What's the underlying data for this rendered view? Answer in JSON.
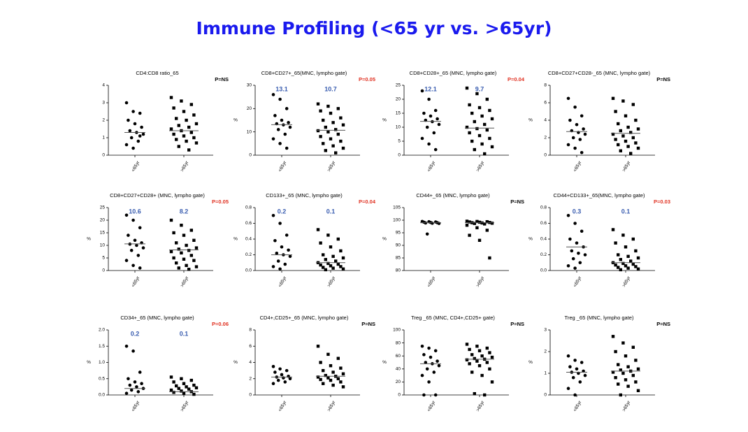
{
  "title": "Immune Profiling (<65 yr vs. >65yr)",
  "chart_data": [
    {
      "type": "dot",
      "title": "CD4:CD8 ratio_65",
      "annotation": "P=NS",
      "annotation_color": "#000000",
      "ylim": [
        0,
        4
      ],
      "yticks": [
        0,
        1,
        2,
        3,
        4
      ],
      "center": [
        1.3,
        1.4
      ],
      "center_labels": false,
      "series": [
        {
          "name": "<65yr",
          "values": [
            3.0,
            2.5,
            2.4,
            2.0,
            1.8,
            1.6,
            1.4,
            1.3,
            1.2,
            1.0,
            0.8,
            0.6,
            0.4,
            1.1
          ]
        },
        {
          "name": ">65yr",
          "values": [
            3.3,
            3.1,
            2.9,
            2.7,
            2.5,
            2.3,
            2.1,
            2.0,
            1.8,
            1.7,
            1.6,
            1.5,
            1.4,
            1.3,
            1.2,
            1.1,
            1.0,
            0.9,
            0.8,
            0.7,
            0.5,
            0.3
          ]
        }
      ]
    },
    {
      "type": "dot",
      "title": "CD8+CD27+_65(MNC, lympho gate)",
      "annotation": "P=0.05",
      "annotation_color": "#e03020",
      "ylabel": "%",
      "ylim": [
        0,
        30
      ],
      "yticks": [
        0,
        10,
        20,
        30
      ],
      "center": [
        13.1,
        10.7
      ],
      "center_labels": true,
      "series": [
        {
          "name": "<65yr",
          "values": [
            26,
            24,
            20,
            17,
            15,
            14,
            13.5,
            13,
            12,
            11,
            9,
            7,
            5,
            3
          ]
        },
        {
          "name": ">65yr",
          "values": [
            22,
            21,
            20,
            19,
            18,
            16,
            15,
            14,
            13,
            12,
            11,
            10.5,
            10,
            9,
            8,
            7,
            6,
            5,
            4,
            3,
            2,
            1
          ]
        }
      ]
    },
    {
      "type": "dot",
      "title": "CD8+CD28+_65 (MNC, lympho gate)",
      "annotation": "P=0.04",
      "annotation_color": "#e03020",
      "ylabel": "%",
      "ylim": [
        0,
        25
      ],
      "yticks": [
        0,
        5,
        10,
        15,
        20,
        25
      ],
      "center": [
        12.1,
        9.7
      ],
      "center_labels": true,
      "series": [
        {
          "name": "<65yr",
          "values": [
            23,
            20,
            16,
            15,
            14,
            13,
            12.5,
            12,
            11,
            10,
            8,
            6,
            4,
            2
          ]
        },
        {
          "name": ">65yr",
          "values": [
            24,
            22,
            20,
            18,
            17,
            16,
            15,
            14,
            13,
            12,
            11,
            10,
            9.5,
            9,
            8,
            7,
            6,
            5,
            4,
            3,
            2,
            0.5
          ]
        }
      ]
    },
    {
      "type": "dot",
      "title": "CD8+CD27+CD28-_65 (MNC, lympho gate)",
      "annotation": "P=NS",
      "annotation_color": "#000000",
      "ylabel": "%",
      "ylim": [
        0,
        8
      ],
      "yticks": [
        0,
        2,
        4,
        6,
        8
      ],
      "center": [
        2.7,
        2.5
      ],
      "center_labels": false,
      "series": [
        {
          "name": "<65yr",
          "values": [
            6.5,
            5.5,
            4.5,
            4,
            3.5,
            3,
            2.8,
            2.6,
            2.4,
            2,
            1.8,
            1.2,
            0.8,
            0.3
          ]
        },
        {
          "name": ">65yr",
          "values": [
            6.5,
            6.2,
            5.8,
            5,
            4.5,
            4,
            3.6,
            3.2,
            3,
            2.8,
            2.6,
            2.4,
            2.2,
            2,
            1.8,
            1.6,
            1.4,
            1.2,
            1,
            0.8,
            0.5,
            0.2
          ]
        }
      ]
    },
    {
      "type": "dot",
      "title": "CD8+CD27+CD28+ (MNC, lympho gate)",
      "annotation": "P=0.05",
      "annotation_color": "#e03020",
      "ylabel": "%",
      "ylim": [
        0,
        25
      ],
      "yticks": [
        0,
        5,
        10,
        15,
        20,
        25
      ],
      "center": [
        10.6,
        8.2
      ],
      "center_labels": true,
      "series": [
        {
          "name": "<65yr",
          "values": [
            22,
            20,
            17,
            14,
            12,
            11,
            10.5,
            10,
            9,
            8,
            6,
            4,
            2,
            1
          ]
        },
        {
          "name": ">65yr",
          "values": [
            20,
            18,
            16,
            15,
            14,
            12,
            11,
            10,
            9,
            8.5,
            8,
            7.5,
            7,
            6,
            5,
            4.5,
            4,
            3,
            2,
            1.5,
            1,
            0.5
          ]
        }
      ]
    },
    {
      "type": "dot",
      "title": "CD133+_65 (MNC, lympho gate)",
      "annotation": "P=0.04",
      "annotation_color": "#e03020",
      "ylabel": "%",
      "ylim": [
        0,
        0.8
      ],
      "yticks": [
        {
          "value": 0,
          "label": "0.0"
        },
        0.2,
        0.4,
        0.6,
        0.8
      ],
      "center": [
        0.2,
        0.1
      ],
      "center_labels": true,
      "series": [
        {
          "name": "<65yr",
          "values": [
            0.7,
            0.6,
            0.45,
            0.38,
            0.3,
            0.26,
            0.22,
            0.2,
            0.18,
            0.12,
            0.08,
            0.05,
            0.02
          ]
        },
        {
          "name": ">65yr",
          "values": [
            0.52,
            0.45,
            0.4,
            0.35,
            0.3,
            0.25,
            0.2,
            0.18,
            0.16,
            0.14,
            0.12,
            0.1,
            0.09,
            0.08,
            0.07,
            0.06,
            0.05,
            0.04,
            0.03,
            0.02,
            0.01
          ]
        }
      ]
    },
    {
      "type": "dot",
      "title": "CD44+_65 (MNC, lympho gate)",
      "annotation": "P=NS",
      "annotation_color": "#000000",
      "ylabel": "%",
      "ylim": [
        80,
        105
      ],
      "yticks": [
        80,
        85,
        90,
        95,
        100,
        105
      ],
      "center": [
        99,
        99
      ],
      "center_labels": false,
      "series": [
        {
          "name": "<65yr",
          "values": [
            99.5,
            99.4,
            99.3,
            99.2,
            99.1,
            99,
            98.9,
            98.8,
            98.7,
            94.5
          ]
        },
        {
          "name": ">65yr",
          "values": [
            99.6,
            99.5,
            99.4,
            99.3,
            99.2,
            99.1,
            99,
            98.9,
            98.8,
            98.7,
            98.5,
            98,
            97,
            96,
            94,
            92,
            85
          ]
        }
      ]
    },
    {
      "type": "dot",
      "title": "CD44+CD133+_65(MNC, lympho gate)",
      "annotation": "P=0.03",
      "annotation_color": "#e03020",
      "ylabel": "%",
      "ylim": [
        0,
        0.8
      ],
      "yticks": [
        {
          "value": 0,
          "label": "0.0"
        },
        0.2,
        0.4,
        0.6,
        0.8
      ],
      "center": [
        0.3,
        0.1
      ],
      "center_labels": true,
      "series": [
        {
          "name": "<65yr",
          "values": [
            0.7,
            0.6,
            0.5,
            0.4,
            0.35,
            0.3,
            0.25,
            0.22,
            0.2,
            0.15,
            0.1,
            0.06,
            0.03
          ]
        },
        {
          "name": ">65yr",
          "values": [
            0.52,
            0.45,
            0.4,
            0.35,
            0.3,
            0.25,
            0.2,
            0.18,
            0.16,
            0.14,
            0.12,
            0.1,
            0.09,
            0.08,
            0.07,
            0.06,
            0.05,
            0.04,
            0.03,
            0.02,
            0.01
          ]
        }
      ]
    },
    {
      "type": "dot",
      "title": "CD34+_65 (MNC, lympho gate)",
      "annotation": "P=0.06",
      "annotation_color": "#e03020",
      "ylabel": "%",
      "ylim": [
        0,
        2
      ],
      "yticks": [
        {
          "value": 0,
          "label": "0.0"
        },
        0.5,
        {
          "value": 1,
          "label": "1.0"
        },
        1.5,
        {
          "value": 2,
          "label": "2.0"
        }
      ],
      "center": [
        0.2,
        0.1
      ],
      "center_labels": true,
      "series": [
        {
          "name": "<65yr",
          "values": [
            1.5,
            1.35,
            0.7,
            0.5,
            0.4,
            0.35,
            0.3,
            0.25,
            0.2,
            0.15,
            0.1,
            0.05
          ]
        },
        {
          "name": ">65yr",
          "values": [
            0.55,
            0.5,
            0.45,
            0.4,
            0.35,
            0.3,
            0.28,
            0.25,
            0.22,
            0.2,
            0.18,
            0.15,
            0.12,
            0.1,
            0.08,
            0.05,
            0.02
          ]
        }
      ]
    },
    {
      "type": "dot",
      "title": "CD4+,CD25+_65 (MNC, lympho gate)",
      "annotation": "P=NS",
      "annotation_color": "#000000",
      "ylabel": "%",
      "ylim": [
        0,
        8
      ],
      "yticks": [
        0,
        2,
        4,
        6,
        8
      ],
      "center": [
        2.2,
        2.3
      ],
      "center_labels": false,
      "series": [
        {
          "name": "<65yr",
          "values": [
            3.5,
            3.2,
            3,
            2.8,
            2.5,
            2.3,
            2.2,
            2.1,
            2,
            1.8,
            1.6,
            1.4
          ]
        },
        {
          "name": ">65yr",
          "values": [
            6,
            5,
            4.5,
            4,
            3.6,
            3.3,
            3,
            2.8,
            2.6,
            2.4,
            2.3,
            2.2,
            2.1,
            2,
            1.9,
            1.8,
            1.6,
            1.4,
            1.2,
            1
          ]
        }
      ]
    },
    {
      "type": "dot",
      "title": "Treg _65 (MNC, CD4+,CD25+ gate)",
      "annotation": "P=NS",
      "annotation_color": "#000000",
      "ylabel": "%",
      "ylim": [
        0,
        100
      ],
      "yticks": [
        0,
        20,
        40,
        60,
        80,
        100
      ],
      "center": [
        48,
        55
      ],
      "center_labels": false,
      "series": [
        {
          "name": "<65yr",
          "values": [
            75,
            72,
            68,
            62,
            58,
            52,
            50,
            48,
            45,
            40,
            35,
            30,
            20,
            0,
            0
          ]
        },
        {
          "name": ">65yr",
          "values": [
            78,
            75,
            72,
            70,
            68,
            65,
            62,
            60,
            58,
            56,
            55,
            54,
            52,
            50,
            48,
            45,
            40,
            35,
            30,
            20,
            2,
            0
          ]
        }
      ]
    },
    {
      "type": "dot",
      "title": "Treg _65 (MNC, lympho gate)",
      "annotation": "P=NS",
      "annotation_color": "#000000",
      "ylabel": "%",
      "ylim": [
        0,
        3
      ],
      "yticks": [
        0,
        1,
        2,
        3
      ],
      "center": [
        1.05,
        1.1
      ],
      "center_labels": false,
      "series": [
        {
          "name": "<65yr",
          "values": [
            1.8,
            1.6,
            1.5,
            1.3,
            1.2,
            1.1,
            1.05,
            1,
            0.9,
            0.8,
            0.6,
            0.3,
            0
          ]
        },
        {
          "name": ">65yr",
          "values": [
            2.7,
            2.4,
            2.2,
            2,
            1.8,
            1.6,
            1.4,
            1.3,
            1.2,
            1.15,
            1.1,
            1.05,
            1,
            0.9,
            0.8,
            0.7,
            0.6,
            0.5,
            0.4,
            0.2,
            0
          ]
        }
      ]
    }
  ]
}
